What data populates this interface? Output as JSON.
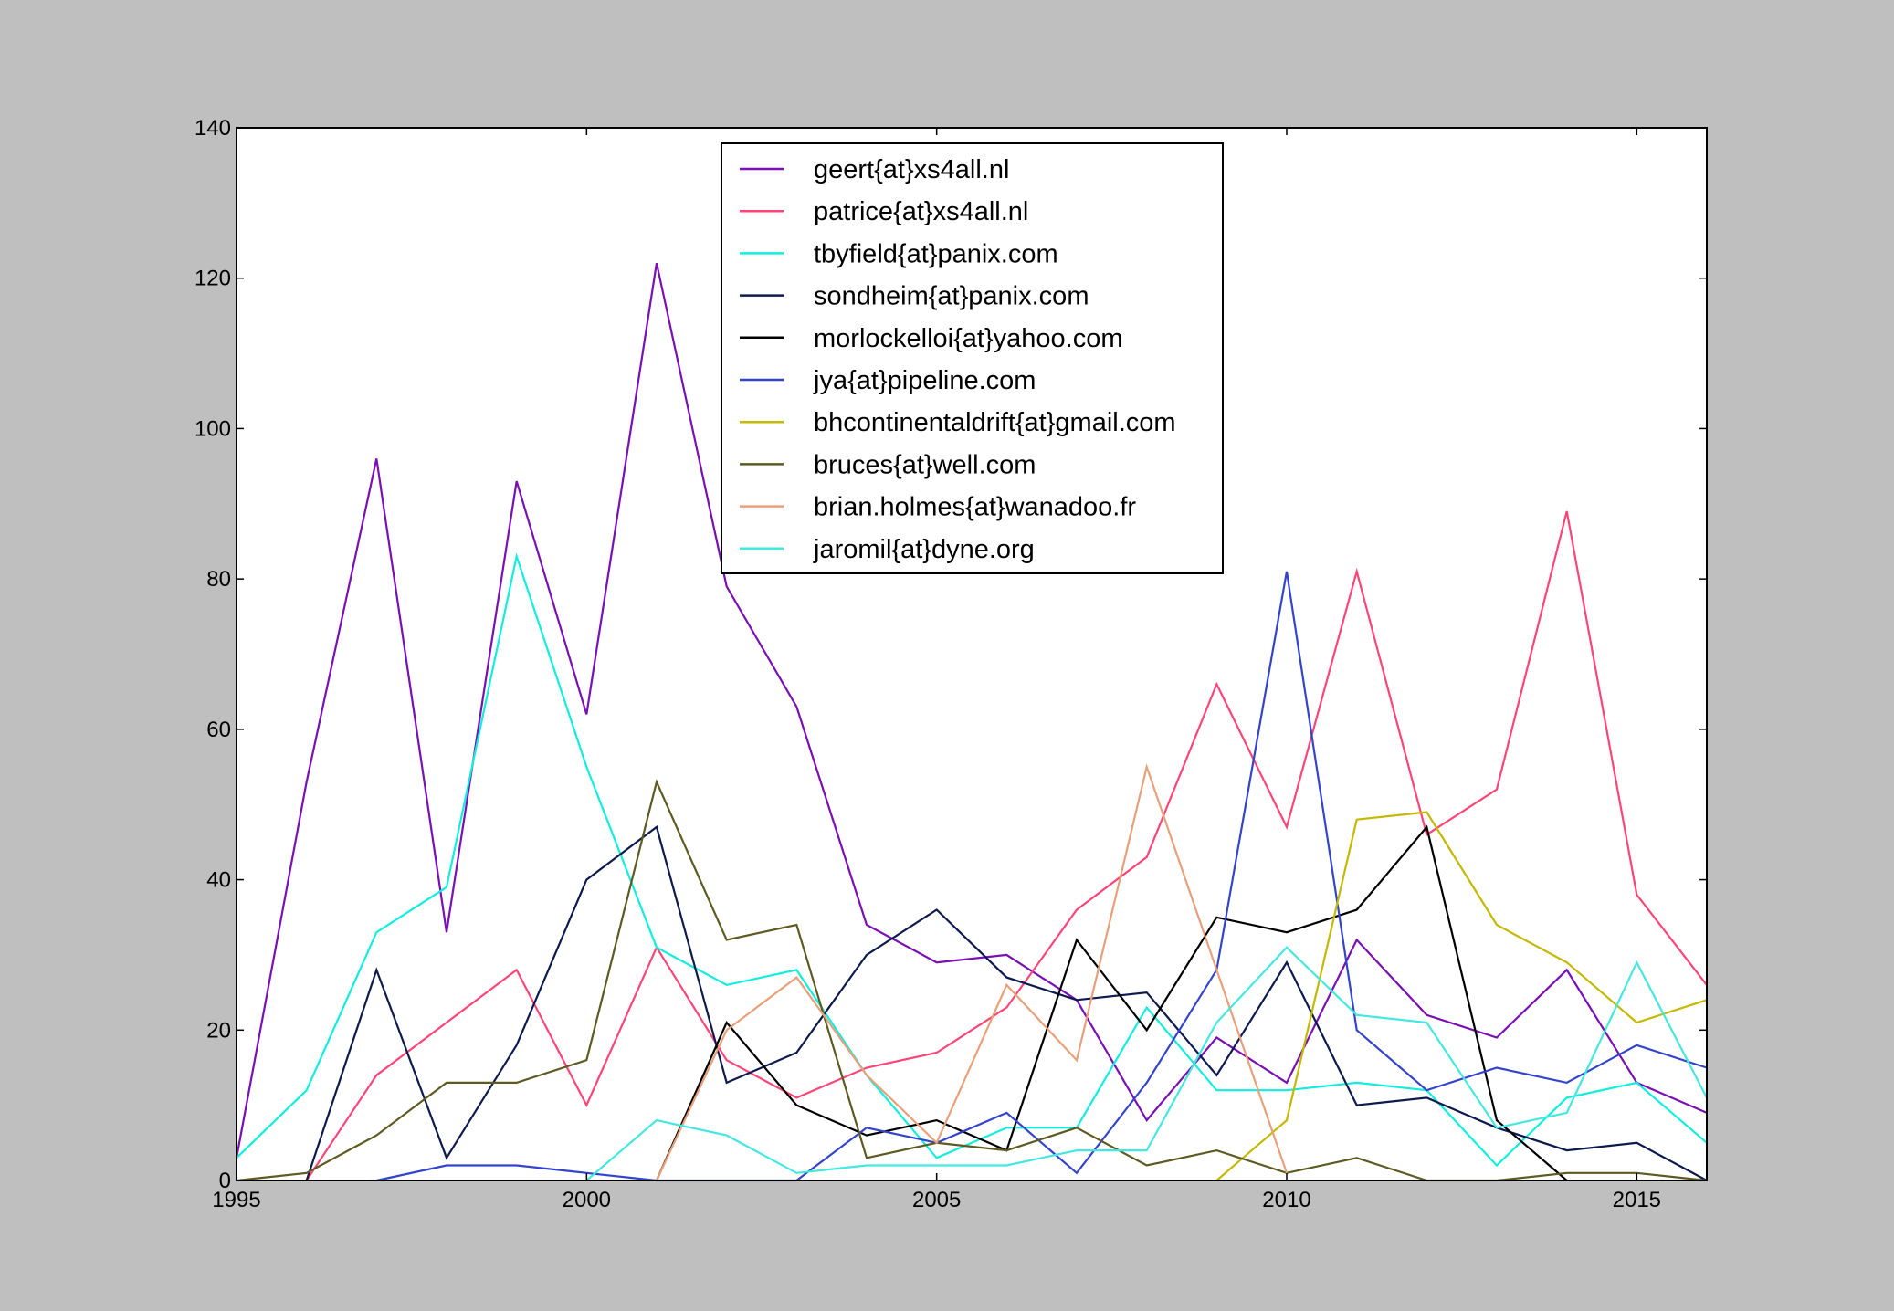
{
  "chart_data": {
    "type": "line",
    "title": "",
    "xlabel": "",
    "ylabel": "",
    "xlim": [
      1995,
      2016
    ],
    "ylim": [
      0,
      140
    ],
    "x_ticks": [
      "1995",
      "2000",
      "2005",
      "2010",
      "2015"
    ],
    "y_ticks": [
      "0",
      "20",
      "40",
      "60",
      "80",
      "100",
      "120",
      "140"
    ],
    "grid": false,
    "legend_position": "top-center",
    "x": [
      1995,
      1996,
      1997,
      1998,
      1999,
      2000,
      2001,
      2002,
      2003,
      2004,
      2005,
      2006,
      2007,
      2008,
      2009,
      2010,
      2011,
      2012,
      2013,
      2014,
      2015,
      2016
    ],
    "series": [
      {
        "name": "geert{at}xs4all.nl",
        "color": "#7a0fb5",
        "values": [
          3,
          53,
          96,
          33,
          93,
          62,
          122,
          79,
          63,
          34,
          29,
          30,
          24,
          8,
          19,
          13,
          32,
          22,
          19,
          28,
          13,
          9
        ]
      },
      {
        "name": "patrice{at}xs4all.nl",
        "color": "#ff4477",
        "values": [
          null,
          0,
          14,
          21,
          28,
          10,
          31,
          16,
          11,
          15,
          17,
          23,
          36,
          43,
          66,
          47,
          81,
          46,
          52,
          89,
          38,
          26
        ]
      },
      {
        "name": "tbyfield{at}panix.com",
        "color": "#11eedd",
        "values": [
          3,
          12,
          33,
          39,
          83,
          55,
          31,
          26,
          28,
          14,
          3,
          7,
          7,
          23,
          12,
          12,
          13,
          12,
          2,
          11,
          13,
          5
        ]
      },
      {
        "name": "sondheim{at}panix.com",
        "color": "#0d1a4d",
        "values": [
          null,
          0,
          28,
          3,
          18,
          40,
          47,
          13,
          17,
          30,
          36,
          27,
          24,
          25,
          14,
          29,
          10,
          11,
          7,
          4,
          5,
          0
        ]
      },
      {
        "name": "morlockelloi{at}yahoo.com",
        "color": "#000000",
        "values": [
          null,
          null,
          null,
          null,
          null,
          null,
          0,
          21,
          10,
          6,
          8,
          4,
          32,
          20,
          35,
          33,
          36,
          47,
          8,
          0,
          null,
          null
        ]
      },
      {
        "name": "jya{at}pipeline.com",
        "color": "#3344cc",
        "values": [
          null,
          null,
          0,
          2,
          2,
          1,
          0,
          0,
          0,
          7,
          5,
          9,
          1,
          13,
          28,
          81,
          20,
          12,
          15,
          13,
          18,
          15
        ]
      },
      {
        "name": "bhcontinentaldrift{at}gmail.com",
        "color": "#c4b800",
        "values": [
          null,
          null,
          null,
          null,
          null,
          null,
          null,
          null,
          null,
          null,
          null,
          null,
          null,
          null,
          0,
          8,
          48,
          49,
          34,
          29,
          21,
          24
        ]
      },
      {
        "name": "bruces{at}well.com",
        "color": "#5e5a22",
        "values": [
          0,
          1,
          6,
          13,
          13,
          16,
          53,
          32,
          34,
          3,
          5,
          4,
          7,
          2,
          4,
          1,
          3,
          0,
          0,
          1,
          1,
          0
        ]
      },
      {
        "name": "brian.holmes{at}wanadoo.fr",
        "color": "#e8a07a",
        "values": [
          null,
          null,
          null,
          null,
          null,
          null,
          0,
          20,
          27,
          14,
          5,
          26,
          16,
          55,
          28,
          1,
          null,
          null,
          null,
          null,
          null,
          null
        ]
      },
      {
        "name": "jaromil{at}dyne.org",
        "color": "#44e8e0",
        "values": [
          null,
          null,
          null,
          null,
          null,
          0,
          8,
          6,
          1,
          2,
          2,
          2,
          4,
          4,
          21,
          31,
          22,
          21,
          7,
          9,
          29,
          11
        ]
      }
    ]
  }
}
